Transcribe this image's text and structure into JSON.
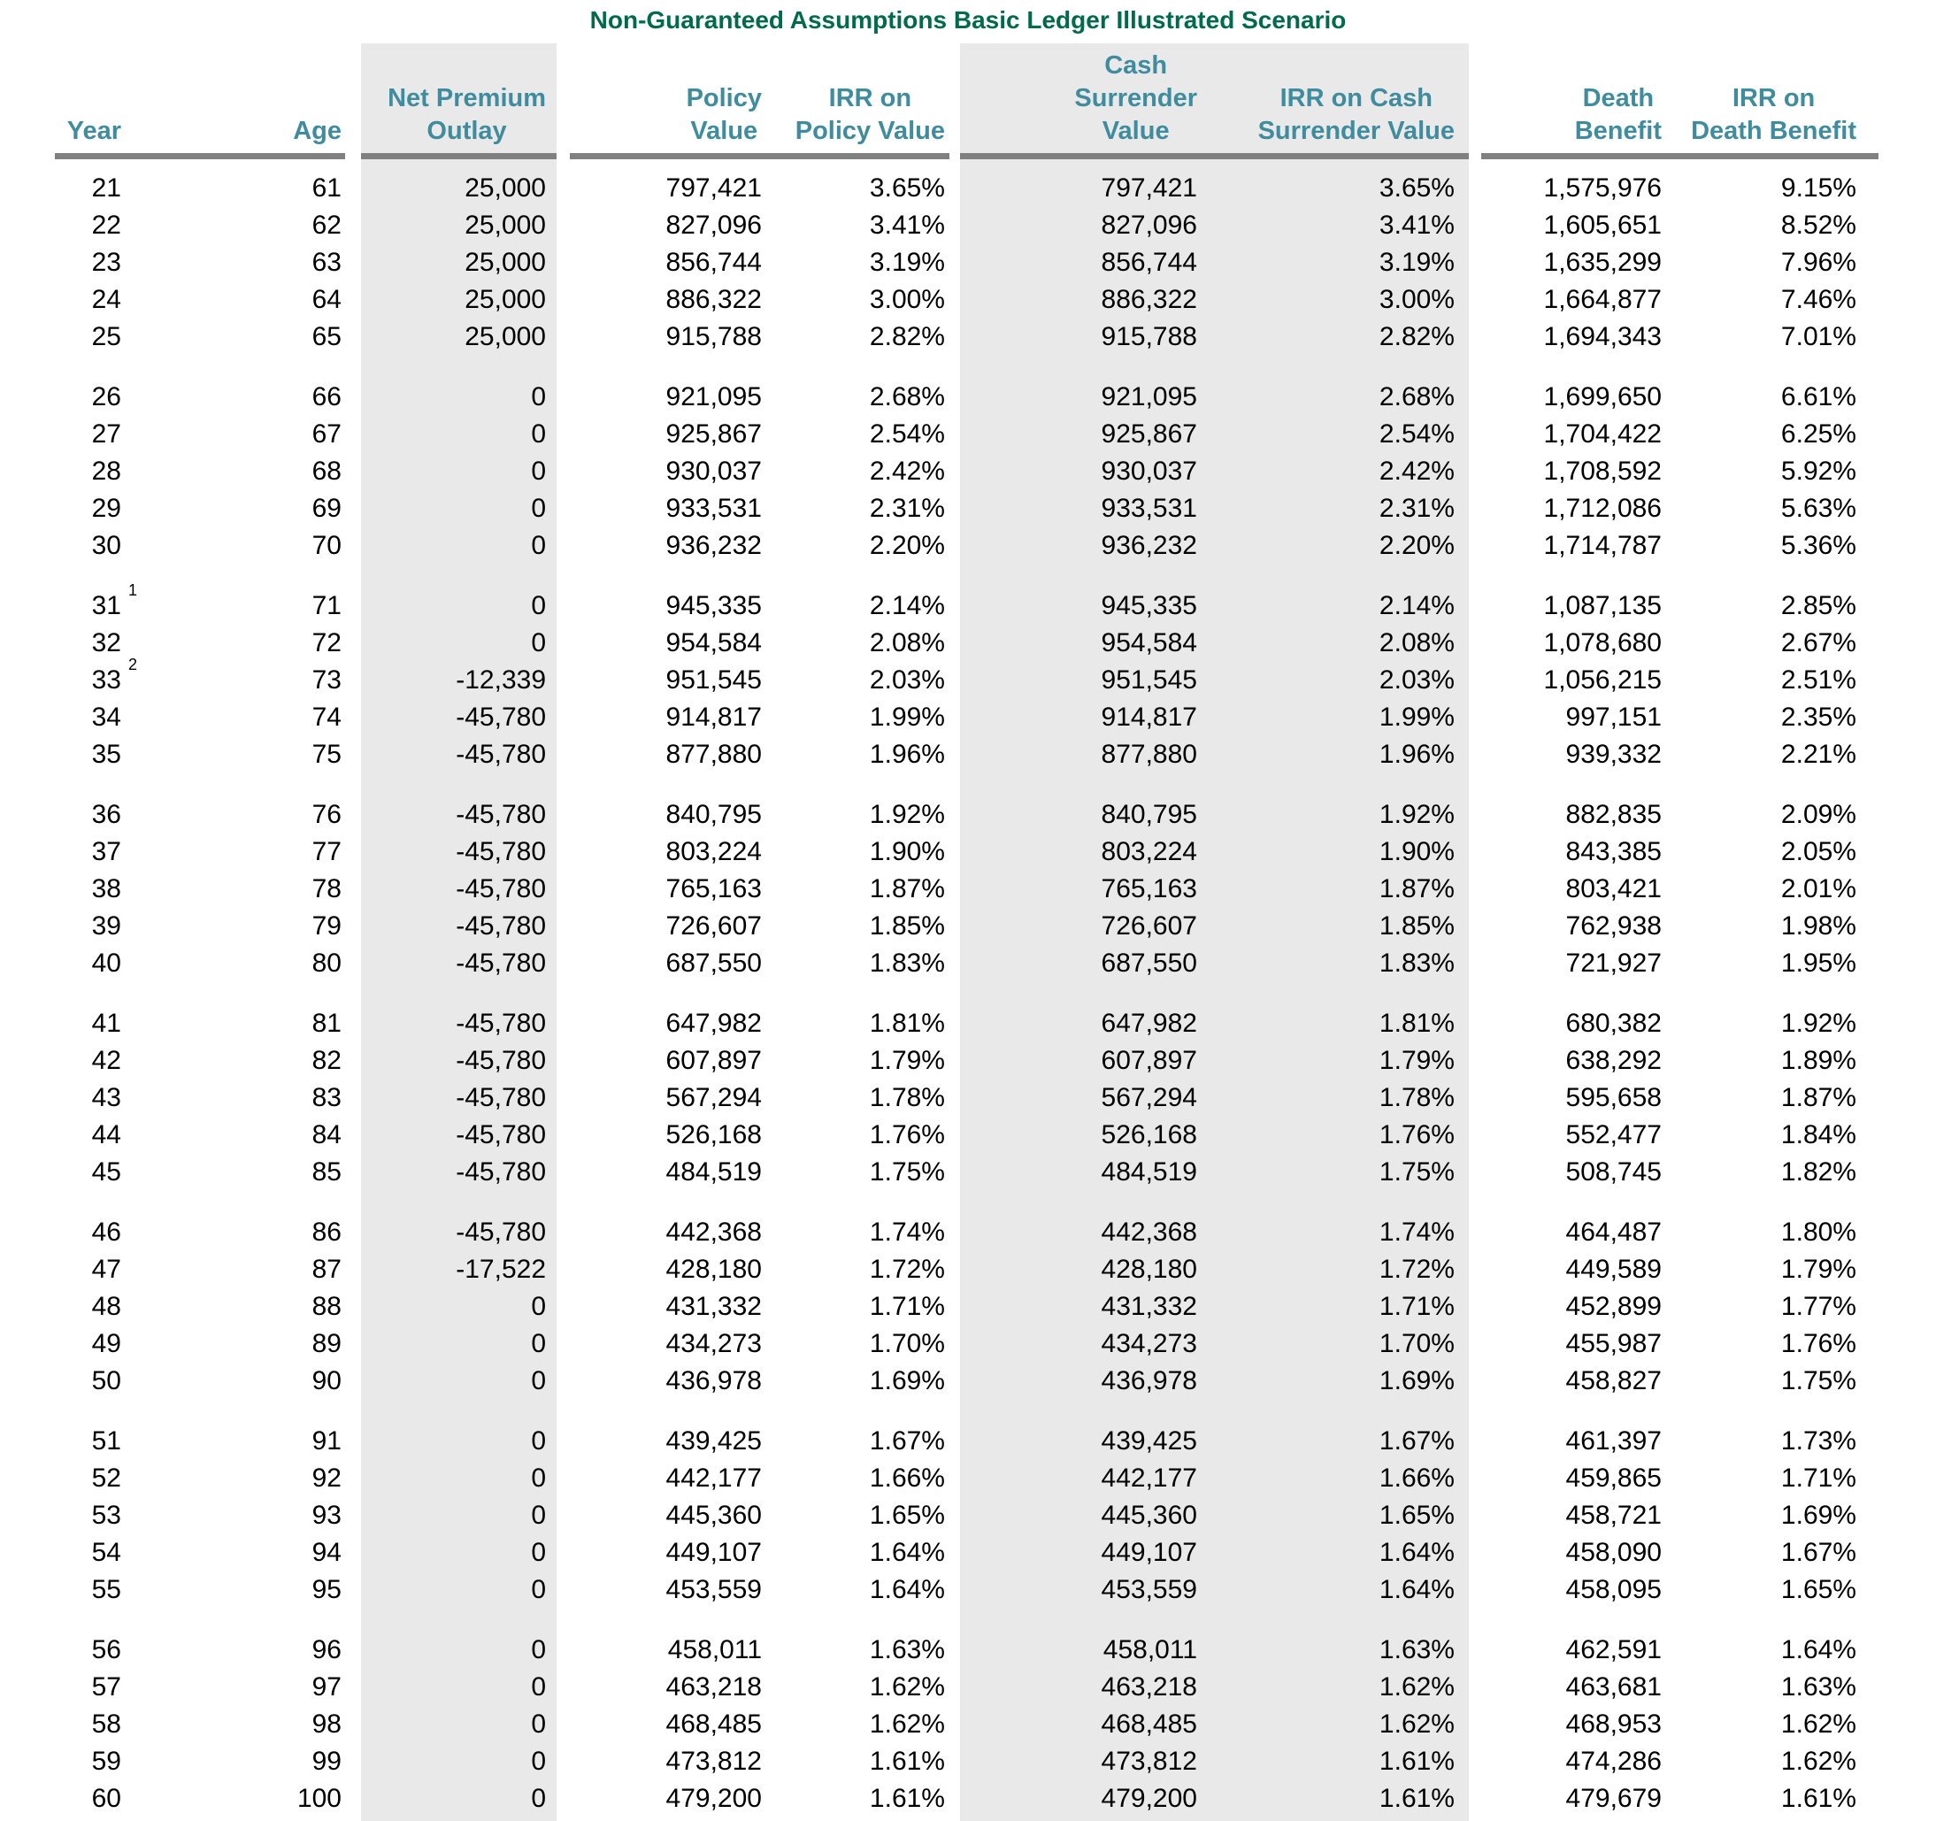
{
  "title": "Non-Guaranteed Assumptions Basic Ledger Illustrated Scenario",
  "colors": {
    "title": "#006A4D",
    "header": "#3E8C9E",
    "column_shading": "#E9E9E9",
    "header_rule": "#808080",
    "body_text": "#000000"
  },
  "headers": {
    "year": [
      "Year"
    ],
    "age": [
      "Age"
    ],
    "npo": [
      "Net Premium",
      "Outlay"
    ],
    "pv": [
      "Policy",
      "Value"
    ],
    "irr_pv": [
      "IRR on",
      "Policy Value"
    ],
    "csv": [
      "Cash",
      "Surrender",
      "Value"
    ],
    "irr_csv": [
      "IRR on Cash",
      "Surrender Value"
    ],
    "db": [
      "Death",
      "Benefit"
    ],
    "irr_db": [
      "IRR on",
      "Death Benefit"
    ]
  },
  "rows": [
    {
      "year": "21",
      "fn": "",
      "age": "61",
      "npo": "25,000",
      "pv": "797,421",
      "irr_pv": "3.65%",
      "csv": "797,421",
      "irr_csv": "3.65%",
      "db": "1,575,976",
      "irr_db": "9.15%"
    },
    {
      "year": "22",
      "fn": "",
      "age": "62",
      "npo": "25,000",
      "pv": "827,096",
      "irr_pv": "3.41%",
      "csv": "827,096",
      "irr_csv": "3.41%",
      "db": "1,605,651",
      "irr_db": "8.52%"
    },
    {
      "year": "23",
      "fn": "",
      "age": "63",
      "npo": "25,000",
      "pv": "856,744",
      "irr_pv": "3.19%",
      "csv": "856,744",
      "irr_csv": "3.19%",
      "db": "1,635,299",
      "irr_db": "7.96%"
    },
    {
      "year": "24",
      "fn": "",
      "age": "64",
      "npo": "25,000",
      "pv": "886,322",
      "irr_pv": "3.00%",
      "csv": "886,322",
      "irr_csv": "3.00%",
      "db": "1,664,877",
      "irr_db": "7.46%"
    },
    {
      "year": "25",
      "fn": "",
      "age": "65",
      "npo": "25,000",
      "pv": "915,788",
      "irr_pv": "2.82%",
      "csv": "915,788",
      "irr_csv": "2.82%",
      "db": "1,694,343",
      "irr_db": "7.01%"
    },
    {
      "year": "26",
      "fn": "",
      "age": "66",
      "npo": "0",
      "pv": "921,095",
      "irr_pv": "2.68%",
      "csv": "921,095",
      "irr_csv": "2.68%",
      "db": "1,699,650",
      "irr_db": "6.61%"
    },
    {
      "year": "27",
      "fn": "",
      "age": "67",
      "npo": "0",
      "pv": "925,867",
      "irr_pv": "2.54%",
      "csv": "925,867",
      "irr_csv": "2.54%",
      "db": "1,704,422",
      "irr_db": "6.25%"
    },
    {
      "year": "28",
      "fn": "",
      "age": "68",
      "npo": "0",
      "pv": "930,037",
      "irr_pv": "2.42%",
      "csv": "930,037",
      "irr_csv": "2.42%",
      "db": "1,708,592",
      "irr_db": "5.92%"
    },
    {
      "year": "29",
      "fn": "",
      "age": "69",
      "npo": "0",
      "pv": "933,531",
      "irr_pv": "2.31%",
      "csv": "933,531",
      "irr_csv": "2.31%",
      "db": "1,712,086",
      "irr_db": "5.63%"
    },
    {
      "year": "30",
      "fn": "",
      "age": "70",
      "npo": "0",
      "pv": "936,232",
      "irr_pv": "2.20%",
      "csv": "936,232",
      "irr_csv": "2.20%",
      "db": "1,714,787",
      "irr_db": "5.36%"
    },
    {
      "year": "31",
      "fn": "1",
      "age": "71",
      "npo": "0",
      "pv": "945,335",
      "irr_pv": "2.14%",
      "csv": "945,335",
      "irr_csv": "2.14%",
      "db": "1,087,135",
      "irr_db": "2.85%"
    },
    {
      "year": "32",
      "fn": "",
      "age": "72",
      "npo": "0",
      "pv": "954,584",
      "irr_pv": "2.08%",
      "csv": "954,584",
      "irr_csv": "2.08%",
      "db": "1,078,680",
      "irr_db": "2.67%"
    },
    {
      "year": "33",
      "fn": "2",
      "age": "73",
      "npo": "-12,339",
      "pv": "951,545",
      "irr_pv": "2.03%",
      "csv": "951,545",
      "irr_csv": "2.03%",
      "db": "1,056,215",
      "irr_db": "2.51%"
    },
    {
      "year": "34",
      "fn": "",
      "age": "74",
      "npo": "-45,780",
      "pv": "914,817",
      "irr_pv": "1.99%",
      "csv": "914,817",
      "irr_csv": "1.99%",
      "db": "997,151",
      "irr_db": "2.35%"
    },
    {
      "year": "35",
      "fn": "",
      "age": "75",
      "npo": "-45,780",
      "pv": "877,880",
      "irr_pv": "1.96%",
      "csv": "877,880",
      "irr_csv": "1.96%",
      "db": "939,332",
      "irr_db": "2.21%"
    },
    {
      "year": "36",
      "fn": "",
      "age": "76",
      "npo": "-45,780",
      "pv": "840,795",
      "irr_pv": "1.92%",
      "csv": "840,795",
      "irr_csv": "1.92%",
      "db": "882,835",
      "irr_db": "2.09%"
    },
    {
      "year": "37",
      "fn": "",
      "age": "77",
      "npo": "-45,780",
      "pv": "803,224",
      "irr_pv": "1.90%",
      "csv": "803,224",
      "irr_csv": "1.90%",
      "db": "843,385",
      "irr_db": "2.05%"
    },
    {
      "year": "38",
      "fn": "",
      "age": "78",
      "npo": "-45,780",
      "pv": "765,163",
      "irr_pv": "1.87%",
      "csv": "765,163",
      "irr_csv": "1.87%",
      "db": "803,421",
      "irr_db": "2.01%"
    },
    {
      "year": "39",
      "fn": "",
      "age": "79",
      "npo": "-45,780",
      "pv": "726,607",
      "irr_pv": "1.85%",
      "csv": "726,607",
      "irr_csv": "1.85%",
      "db": "762,938",
      "irr_db": "1.98%"
    },
    {
      "year": "40",
      "fn": "",
      "age": "80",
      "npo": "-45,780",
      "pv": "687,550",
      "irr_pv": "1.83%",
      "csv": "687,550",
      "irr_csv": "1.83%",
      "db": "721,927",
      "irr_db": "1.95%"
    },
    {
      "year": "41",
      "fn": "",
      "age": "81",
      "npo": "-45,780",
      "pv": "647,982",
      "irr_pv": "1.81%",
      "csv": "647,982",
      "irr_csv": "1.81%",
      "db": "680,382",
      "irr_db": "1.92%"
    },
    {
      "year": "42",
      "fn": "",
      "age": "82",
      "npo": "-45,780",
      "pv": "607,897",
      "irr_pv": "1.79%",
      "csv": "607,897",
      "irr_csv": "1.79%",
      "db": "638,292",
      "irr_db": "1.89%"
    },
    {
      "year": "43",
      "fn": "",
      "age": "83",
      "npo": "-45,780",
      "pv": "567,294",
      "irr_pv": "1.78%",
      "csv": "567,294",
      "irr_csv": "1.78%",
      "db": "595,658",
      "irr_db": "1.87%"
    },
    {
      "year": "44",
      "fn": "",
      "age": "84",
      "npo": "-45,780",
      "pv": "526,168",
      "irr_pv": "1.76%",
      "csv": "526,168",
      "irr_csv": "1.76%",
      "db": "552,477",
      "irr_db": "1.84%"
    },
    {
      "year": "45",
      "fn": "",
      "age": "85",
      "npo": "-45,780",
      "pv": "484,519",
      "irr_pv": "1.75%",
      "csv": "484,519",
      "irr_csv": "1.75%",
      "db": "508,745",
      "irr_db": "1.82%"
    },
    {
      "year": "46",
      "fn": "",
      "age": "86",
      "npo": "-45,780",
      "pv": "442,368",
      "irr_pv": "1.74%",
      "csv": "442,368",
      "irr_csv": "1.74%",
      "db": "464,487",
      "irr_db": "1.80%"
    },
    {
      "year": "47",
      "fn": "",
      "age": "87",
      "npo": "-17,522",
      "pv": "428,180",
      "irr_pv": "1.72%",
      "csv": "428,180",
      "irr_csv": "1.72%",
      "db": "449,589",
      "irr_db": "1.79%"
    },
    {
      "year": "48",
      "fn": "",
      "age": "88",
      "npo": "0",
      "pv": "431,332",
      "irr_pv": "1.71%",
      "csv": "431,332",
      "irr_csv": "1.71%",
      "db": "452,899",
      "irr_db": "1.77%"
    },
    {
      "year": "49",
      "fn": "",
      "age": "89",
      "npo": "0",
      "pv": "434,273",
      "irr_pv": "1.70%",
      "csv": "434,273",
      "irr_csv": "1.70%",
      "db": "455,987",
      "irr_db": "1.76%"
    },
    {
      "year": "50",
      "fn": "",
      "age": "90",
      "npo": "0",
      "pv": "436,978",
      "irr_pv": "1.69%",
      "csv": "436,978",
      "irr_csv": "1.69%",
      "db": "458,827",
      "irr_db": "1.75%"
    },
    {
      "year": "51",
      "fn": "",
      "age": "91",
      "npo": "0",
      "pv": "439,425",
      "irr_pv": "1.67%",
      "csv": "439,425",
      "irr_csv": "1.67%",
      "db": "461,397",
      "irr_db": "1.73%"
    },
    {
      "year": "52",
      "fn": "",
      "age": "92",
      "npo": "0",
      "pv": "442,177",
      "irr_pv": "1.66%",
      "csv": "442,177",
      "irr_csv": "1.66%",
      "db": "459,865",
      "irr_db": "1.71%"
    },
    {
      "year": "53",
      "fn": "",
      "age": "93",
      "npo": "0",
      "pv": "445,360",
      "irr_pv": "1.65%",
      "csv": "445,360",
      "irr_csv": "1.65%",
      "db": "458,721",
      "irr_db": "1.69%"
    },
    {
      "year": "54",
      "fn": "",
      "age": "94",
      "npo": "0",
      "pv": "449,107",
      "irr_pv": "1.64%",
      "csv": "449,107",
      "irr_csv": "1.64%",
      "db": "458,090",
      "irr_db": "1.67%"
    },
    {
      "year": "55",
      "fn": "",
      "age": "95",
      "npo": "0",
      "pv": "453,559",
      "irr_pv": "1.64%",
      "csv": "453,559",
      "irr_csv": "1.64%",
      "db": "458,095",
      "irr_db": "1.65%"
    },
    {
      "year": "56",
      "fn": "",
      "age": "96",
      "npo": "0",
      "pv": "458,011",
      "irr_pv": "1.63%",
      "csv": "458,011",
      "irr_csv": "1.63%",
      "db": "462,591",
      "irr_db": "1.64%"
    },
    {
      "year": "57",
      "fn": "",
      "age": "97",
      "npo": "0",
      "pv": "463,218",
      "irr_pv": "1.62%",
      "csv": "463,218",
      "irr_csv": "1.62%",
      "db": "463,681",
      "irr_db": "1.63%"
    },
    {
      "year": "58",
      "fn": "",
      "age": "98",
      "npo": "0",
      "pv": "468,485",
      "irr_pv": "1.62%",
      "csv": "468,485",
      "irr_csv": "1.62%",
      "db": "468,953",
      "irr_db": "1.62%"
    },
    {
      "year": "59",
      "fn": "",
      "age": "99",
      "npo": "0",
      "pv": "473,812",
      "irr_pv": "1.61%",
      "csv": "473,812",
      "irr_csv": "1.61%",
      "db": "474,286",
      "irr_db": "1.62%"
    },
    {
      "year": "60",
      "fn": "",
      "age": "100",
      "npo": "0",
      "pv": "479,200",
      "irr_pv": "1.61%",
      "csv": "479,200",
      "irr_csv": "1.61%",
      "db": "479,679",
      "irr_db": "1.61%"
    }
  ]
}
